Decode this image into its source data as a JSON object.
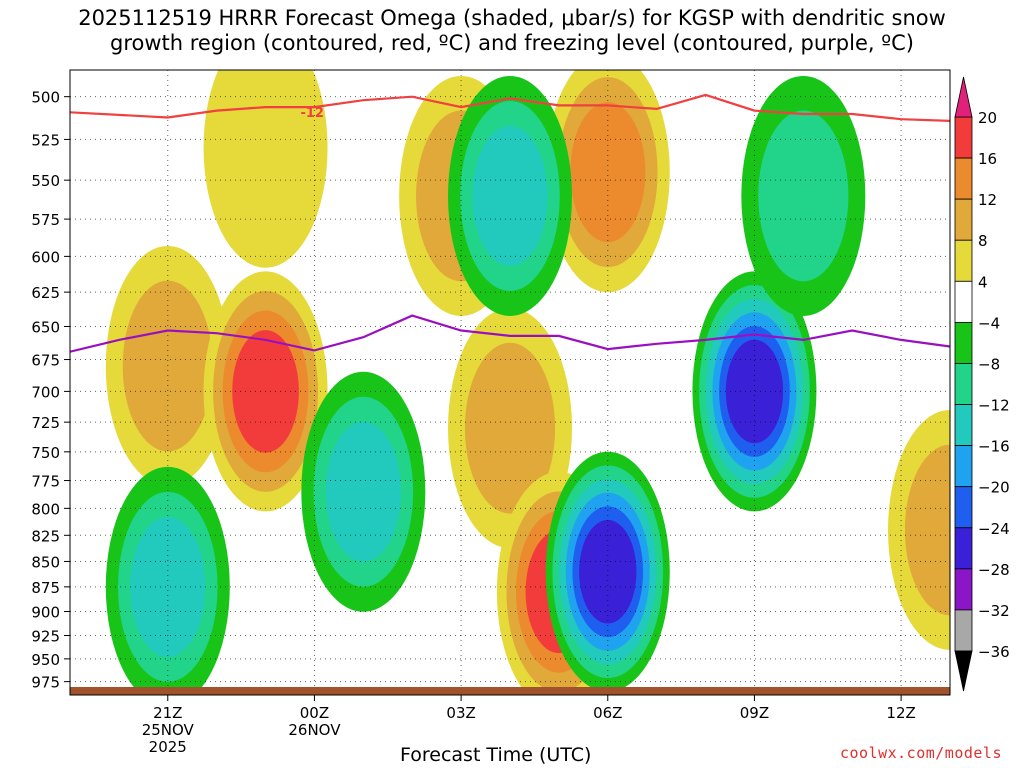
{
  "title_line1": "2025112519 HRRR Forecast Omega (shaded, μbar/s) for KGSP with dendritic snow",
  "title_line2": "growth region (contoured, red, ºC) and freezing level (contoured, purple, ºC)",
  "credit": "coolwx.com/models",
  "colors": {
    "c_pos20": "#e0207a",
    "c_pos16": "#f23c3c",
    "c_pos12": "#ec8a2e",
    "c_pos8": "#e0a93a",
    "c_pos4": "#e6d93a",
    "c_zero": "#ffffff",
    "c_neg4": "#19c419",
    "c_neg8": "#22d38a",
    "c_neg12": "#22c9bd",
    "c_neg16": "#1fa3f0",
    "c_neg20": "#1f5fef",
    "c_neg24": "#3a20d6",
    "c_neg28": "#8a16c8",
    "c_neg32": "#a8a8a8",
    "c_neg36": "#000000",
    "dgz": "#f04040",
    "frz": "#9a10c0",
    "ground": "#a0522d"
  },
  "chart_data": {
    "type": "heatmap",
    "title": "2025112519 HRRR Forecast Omega (shaded, μbar/s) for KGSP with dendritic snow growth region (contoured, red, ºC) and freezing level (contoured, purple, ºC)",
    "xlabel": "Forecast Time (UTC)",
    "ylabel": "",
    "x_ticks": [
      {
        "label": "21Z",
        "sub1": "25NOV",
        "sub2": "2025",
        "hour": 2
      },
      {
        "label": "00Z",
        "sub1": "26NOV",
        "sub2": "",
        "hour": 5
      },
      {
        "label": "03Z",
        "sub1": "",
        "sub2": "",
        "hour": 8
      },
      {
        "label": "06Z",
        "sub1": "",
        "sub2": "",
        "hour": 11
      },
      {
        "label": "09Z",
        "sub1": "",
        "sub2": "",
        "hour": 14
      },
      {
        "label": "12Z",
        "sub1": "",
        "sub2": "",
        "hour": 17
      }
    ],
    "xlim": [
      0,
      18
    ],
    "y_ticks": [
      500,
      525,
      550,
      575,
      600,
      625,
      650,
      675,
      700,
      725,
      750,
      775,
      800,
      825,
      850,
      875,
      900,
      925,
      950,
      975
    ],
    "ylim": [
      485,
      990
    ],
    "y_scale": "log-pressure",
    "grid": true,
    "colorbar": {
      "labels": [
        "20",
        "16",
        "12",
        "8",
        "4",
        "−4",
        "−8",
        "−12",
        "−16",
        "−20",
        "−24",
        "−28",
        "−32",
        "−36"
      ],
      "levels": [
        24,
        20,
        16,
        12,
        8,
        4,
        -4,
        -8,
        -12,
        -16,
        -20,
        -24,
        -28,
        -32,
        -36
      ]
    },
    "dgz_contour": {
      "label": "-12",
      "points": [
        [
          0,
          509
        ],
        [
          2,
          512
        ],
        [
          3,
          508
        ],
        [
          4,
          506
        ],
        [
          5,
          506
        ],
        [
          6,
          502
        ],
        [
          7,
          500
        ],
        [
          8,
          506
        ],
        [
          9,
          501
        ],
        [
          10,
          505
        ],
        [
          11,
          505
        ],
        [
          12,
          507
        ],
        [
          13,
          499
        ],
        [
          14,
          508
        ],
        [
          15,
          510
        ],
        [
          16,
          510
        ],
        [
          17,
          513
        ],
        [
          18,
          514
        ]
      ]
    },
    "freezing_level": {
      "points": [
        [
          0,
          669
        ],
        [
          1,
          660
        ],
        [
          2,
          653
        ],
        [
          3,
          655
        ],
        [
          4,
          660
        ],
        [
          5,
          668
        ],
        [
          6,
          658
        ],
        [
          7,
          642
        ],
        [
          8,
          653
        ],
        [
          9,
          657
        ],
        [
          10,
          657
        ],
        [
          11,
          667
        ],
        [
          12,
          663
        ],
        [
          13,
          660
        ],
        [
          14,
          656
        ],
        [
          15,
          660
        ],
        [
          16,
          653
        ],
        [
          17,
          660
        ],
        [
          18,
          665
        ]
      ]
    },
    "omega_regions": [
      {
        "t": 2,
        "p": 680,
        "level": 8
      },
      {
        "t": 4,
        "p": 700,
        "level": 16
      },
      {
        "t": 4,
        "p": 530,
        "level": 4
      },
      {
        "t": 2,
        "p": 875,
        "level": -12
      },
      {
        "t": 8,
        "p": 560,
        "level": 8
      },
      {
        "t": 9,
        "p": 730,
        "level": 8
      },
      {
        "t": 10,
        "p": 880,
        "level": 16
      },
      {
        "t": 11,
        "p": 545,
        "level": 12
      },
      {
        "t": 6,
        "p": 785,
        "level": -12
      },
      {
        "t": 9,
        "p": 560,
        "level": -12
      },
      {
        "t": 11,
        "p": 860,
        "level": -24
      },
      {
        "t": 14,
        "p": 700,
        "level": -24
      },
      {
        "t": 15,
        "p": 560,
        "level": -8
      },
      {
        "t": 18,
        "p": 820,
        "level": 8
      }
    ]
  }
}
